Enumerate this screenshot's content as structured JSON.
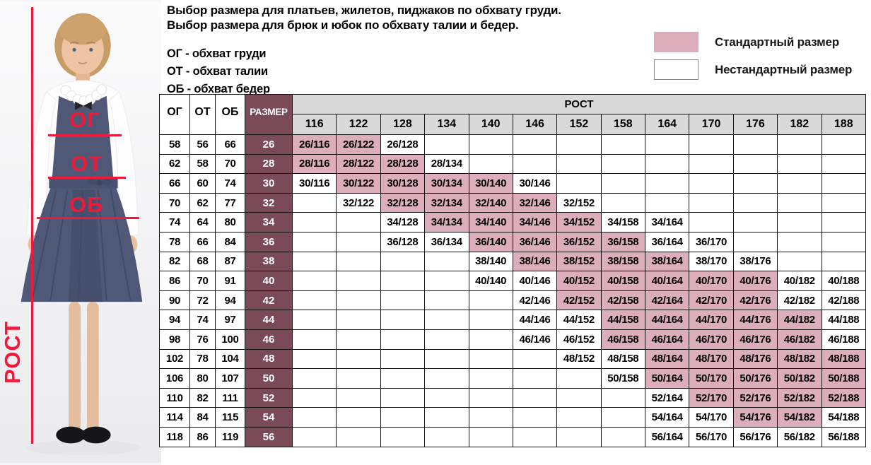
{
  "colors": {
    "standard_pink": "#dcadba",
    "size_column_maroon": "#7a4a57",
    "header_gray": "#d9d9d9",
    "accent_red": "#f0193a"
  },
  "header": {
    "title_line1": "Выбор размера для платьев, жилетов, пиджаков по обхвату груди.",
    "title_line2": "Выбор размера для брюк и юбок по обхвату талии и бедер.",
    "abbreviations": [
      "ОГ - обхват груди",
      "ОТ - обхват талии",
      "ОБ - обхват бедер"
    ]
  },
  "legend": {
    "standard_label": "Стандартный размер",
    "nonstandard_label": "Нестандартный размер"
  },
  "annotations": {
    "height_label": "РОСТ",
    "chest_label": "ОГ",
    "waist_label": "ОТ",
    "hips_label": "ОБ"
  },
  "table": {
    "col_headers": {
      "og": "ОГ",
      "ot": "ОТ",
      "ob": "ОБ",
      "size": "РАЗМЕР",
      "rost": "РОСТ"
    },
    "heights": [
      116,
      122,
      128,
      134,
      140,
      146,
      152,
      158,
      164,
      170,
      176,
      182,
      188
    ],
    "rows": [
      {
        "og": 58,
        "ot": 56,
        "ob": 66,
        "size": 26,
        "cells": [
          {
            "t": "26/116",
            "c": "std"
          },
          {
            "t": "26/122",
            "c": "std"
          },
          {
            "t": "26/128",
            "c": "non"
          },
          null,
          null,
          null,
          null,
          null,
          null,
          null,
          null,
          null,
          null
        ]
      },
      {
        "og": 62,
        "ot": 58,
        "ob": 70,
        "size": 28,
        "cells": [
          {
            "t": "28/116",
            "c": "std"
          },
          {
            "t": "28/122",
            "c": "std"
          },
          {
            "t": "28/128",
            "c": "std"
          },
          {
            "t": "28/134",
            "c": "non"
          },
          null,
          null,
          null,
          null,
          null,
          null,
          null,
          null,
          null
        ]
      },
      {
        "og": 66,
        "ot": 60,
        "ob": 74,
        "size": 30,
        "cells": [
          {
            "t": "30/116",
            "c": "non"
          },
          {
            "t": "30/122",
            "c": "std"
          },
          {
            "t": "30/128",
            "c": "std"
          },
          {
            "t": "30/134",
            "c": "std"
          },
          {
            "t": "30/140",
            "c": "std"
          },
          {
            "t": "30/146",
            "c": "non"
          },
          null,
          null,
          null,
          null,
          null,
          null,
          null
        ]
      },
      {
        "og": 70,
        "ot": 62,
        "ob": 77,
        "size": 32,
        "cells": [
          null,
          {
            "t": "32/122",
            "c": "non"
          },
          {
            "t": "32/128",
            "c": "std"
          },
          {
            "t": "32/134",
            "c": "std"
          },
          {
            "t": "32/140",
            "c": "std"
          },
          {
            "t": "32/146",
            "c": "std"
          },
          {
            "t": "32/152",
            "c": "non"
          },
          null,
          null,
          null,
          null,
          null,
          null
        ]
      },
      {
        "og": 74,
        "ot": 64,
        "ob": 80,
        "size": 34,
        "cells": [
          null,
          null,
          {
            "t": "34/128",
            "c": "non"
          },
          {
            "t": "34/134",
            "c": "std"
          },
          {
            "t": "34/140",
            "c": "std"
          },
          {
            "t": "34/146",
            "c": "std"
          },
          {
            "t": "34/152",
            "c": "std"
          },
          {
            "t": "34/158",
            "c": "non"
          },
          {
            "t": "34/164",
            "c": "non"
          },
          null,
          null,
          null,
          null
        ]
      },
      {
        "og": 78,
        "ot": 66,
        "ob": 84,
        "size": 36,
        "cells": [
          null,
          null,
          {
            "t": "36/128",
            "c": "non"
          },
          {
            "t": "36/134",
            "c": "non"
          },
          {
            "t": "36/140",
            "c": "std"
          },
          {
            "t": "36/146",
            "c": "std"
          },
          {
            "t": "36/152",
            "c": "std"
          },
          {
            "t": "36/158",
            "c": "std"
          },
          {
            "t": "36/164",
            "c": "non"
          },
          {
            "t": "36/170",
            "c": "non"
          },
          null,
          null,
          null
        ]
      },
      {
        "og": 82,
        "ot": 68,
        "ob": 87,
        "size": 38,
        "cells": [
          null,
          null,
          null,
          null,
          {
            "t": "38/140",
            "c": "non"
          },
          {
            "t": "38/146",
            "c": "std"
          },
          {
            "t": "38/152",
            "c": "std"
          },
          {
            "t": "38/158",
            "c": "std"
          },
          {
            "t": "38/164",
            "c": "std"
          },
          {
            "t": "38/170",
            "c": "non"
          },
          {
            "t": "38/176",
            "c": "non"
          },
          null,
          null
        ]
      },
      {
        "og": 86,
        "ot": 70,
        "ob": 91,
        "size": 40,
        "cells": [
          null,
          null,
          null,
          null,
          {
            "t": "40/140",
            "c": "non"
          },
          {
            "t": "40/146",
            "c": "non"
          },
          {
            "t": "40/152",
            "c": "std"
          },
          {
            "t": "40/158",
            "c": "std"
          },
          {
            "t": "40/164",
            "c": "std"
          },
          {
            "t": "40/170",
            "c": "std"
          },
          {
            "t": "40/176",
            "c": "std"
          },
          {
            "t": "40/182",
            "c": "non"
          },
          {
            "t": "40/188",
            "c": "non"
          }
        ]
      },
      {
        "og": 90,
        "ot": 72,
        "ob": 94,
        "size": 42,
        "cells": [
          null,
          null,
          null,
          null,
          null,
          {
            "t": "42/146",
            "c": "non"
          },
          {
            "t": "42/152",
            "c": "std"
          },
          {
            "t": "42/158",
            "c": "std"
          },
          {
            "t": "42/164",
            "c": "std"
          },
          {
            "t": "42/170",
            "c": "std"
          },
          {
            "t": "42/176",
            "c": "std"
          },
          {
            "t": "42/182",
            "c": "non"
          },
          {
            "t": "42/188",
            "c": "non"
          }
        ]
      },
      {
        "og": 94,
        "ot": 74,
        "ob": 97,
        "size": 44,
        "cells": [
          null,
          null,
          null,
          null,
          null,
          {
            "t": "44/146",
            "c": "non"
          },
          {
            "t": "44/152",
            "c": "non"
          },
          {
            "t": "44/158",
            "c": "std"
          },
          {
            "t": "44/164",
            "c": "std"
          },
          {
            "t": "44/170",
            "c": "std"
          },
          {
            "t": "44/176",
            "c": "std"
          },
          {
            "t": "44/182",
            "c": "std"
          },
          {
            "t": "44/188",
            "c": "non"
          }
        ]
      },
      {
        "og": 98,
        "ot": 76,
        "ob": 100,
        "size": 46,
        "cells": [
          null,
          null,
          null,
          null,
          null,
          {
            "t": "46/146",
            "c": "non"
          },
          {
            "t": "46/152",
            "c": "non"
          },
          {
            "t": "46/158",
            "c": "std"
          },
          {
            "t": "46/164",
            "c": "std"
          },
          {
            "t": "46/170",
            "c": "std"
          },
          {
            "t": "46/176",
            "c": "std"
          },
          {
            "t": "46/182",
            "c": "std"
          },
          {
            "t": "46/188",
            "c": "non"
          }
        ]
      },
      {
        "og": 102,
        "ot": 78,
        "ob": 104,
        "size": 48,
        "cells": [
          null,
          null,
          null,
          null,
          null,
          null,
          {
            "t": "48/152",
            "c": "non"
          },
          {
            "t": "48/158",
            "c": "non"
          },
          {
            "t": "48/164",
            "c": "std"
          },
          {
            "t": "48/170",
            "c": "std"
          },
          {
            "t": "48/176",
            "c": "std"
          },
          {
            "t": "48/182",
            "c": "std"
          },
          {
            "t": "48/188",
            "c": "std"
          }
        ]
      },
      {
        "og": 106,
        "ot": 80,
        "ob": 107,
        "size": 50,
        "cells": [
          null,
          null,
          null,
          null,
          null,
          null,
          null,
          {
            "t": "50/158",
            "c": "non"
          },
          {
            "t": "50/164",
            "c": "std"
          },
          {
            "t": "50/170",
            "c": "std"
          },
          {
            "t": "50/176",
            "c": "std"
          },
          {
            "t": "50/182",
            "c": "std"
          },
          {
            "t": "50/188",
            "c": "std"
          }
        ]
      },
      {
        "og": 110,
        "ot": 82,
        "ob": 111,
        "size": 52,
        "cells": [
          null,
          null,
          null,
          null,
          null,
          null,
          null,
          null,
          {
            "t": "52/164",
            "c": "non"
          },
          {
            "t": "52/170",
            "c": "std"
          },
          {
            "t": "52/176",
            "c": "std"
          },
          {
            "t": "52/182",
            "c": "std"
          },
          {
            "t": "52/188",
            "c": "std"
          }
        ]
      },
      {
        "og": 114,
        "ot": 84,
        "ob": 115,
        "size": 54,
        "cells": [
          null,
          null,
          null,
          null,
          null,
          null,
          null,
          null,
          {
            "t": "54/164",
            "c": "non"
          },
          {
            "t": "54/170",
            "c": "non"
          },
          {
            "t": "54/176",
            "c": "std"
          },
          {
            "t": "54/182",
            "c": "std"
          },
          {
            "t": "54/188",
            "c": "non"
          }
        ]
      },
      {
        "og": 118,
        "ot": 86,
        "ob": 119,
        "size": 56,
        "cells": [
          null,
          null,
          null,
          null,
          null,
          null,
          null,
          null,
          {
            "t": "56/164",
            "c": "non"
          },
          {
            "t": "56/170",
            "c": "non"
          },
          {
            "t": "56/176",
            "c": "non"
          },
          {
            "t": "56/182",
            "c": "non"
          },
          {
            "t": "56/188",
            "c": "non"
          }
        ]
      }
    ]
  }
}
